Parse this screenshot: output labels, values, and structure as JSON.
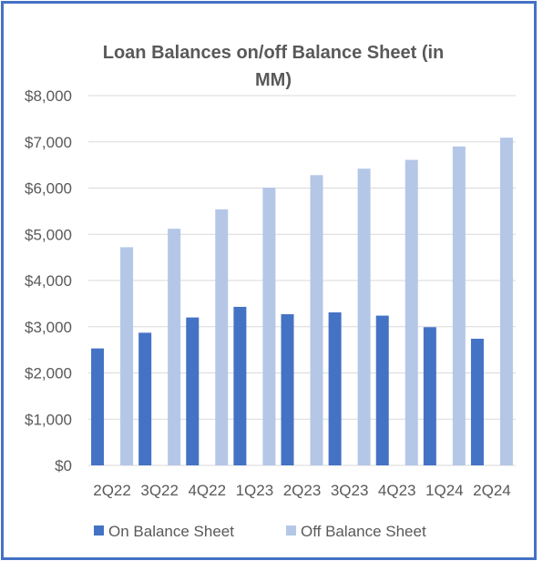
{
  "chart_data": {
    "type": "bar",
    "title": "Loan Balances on/off Balance Sheet (in MM)",
    "title_lines": [
      "Loan Balances on/off Balance Sheet (in",
      "MM)"
    ],
    "categories": [
      "2Q22",
      "3Q22",
      "4Q22",
      "1Q23",
      "2Q23",
      "3Q23",
      "4Q23",
      "1Q24",
      "2Q24"
    ],
    "series": [
      {
        "name": "On Balance Sheet",
        "color": "#4472C4",
        "values": [
          2530,
          2870,
          3200,
          3430,
          3270,
          3310,
          3240,
          2990,
          2740
        ]
      },
      {
        "name": "Off Balance Sheet",
        "color": "#B4C7E7",
        "values": [
          4720,
          5120,
          5540,
          6010,
          6280,
          6420,
          6610,
          6900,
          7090
        ]
      }
    ],
    "y_ticks": [
      "$0",
      "$1,000",
      "$2,000",
      "$3,000",
      "$4,000",
      "$5,000",
      "$6,000",
      "$7,000",
      "$8,000"
    ],
    "ylim": [
      0,
      8000
    ],
    "xlabel": "",
    "ylabel": "",
    "grid": true,
    "legend_position": "bottom"
  }
}
